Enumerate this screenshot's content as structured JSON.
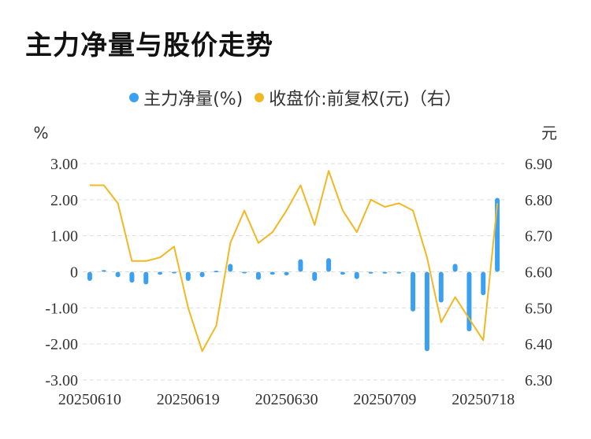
{
  "title": "主力净量与股价走势",
  "colors": {
    "bar": "#3ba0ef",
    "line": "#f2b824",
    "grid": "#dddddd"
  },
  "chart_data": {
    "type": "bar+line",
    "title": "主力净量与股价走势",
    "left_unit": "%",
    "right_unit": "元",
    "legend": [
      {
        "label": "主力净量(%)",
        "color": "#3ba0ef",
        "icon": "dot"
      },
      {
        "label": "收盘价:前复权(元)（右）",
        "color": "#f2b824",
        "icon": "dot"
      }
    ],
    "legend_position": "top-center",
    "grid": true,
    "y_left": {
      "ticks": [
        "3.00",
        "2.00",
        "1.00",
        "0",
        "-1.00",
        "-2.00",
        "-3.00"
      ],
      "range": [
        -3,
        3
      ]
    },
    "y_right": {
      "ticks": [
        "6.90",
        "6.80",
        "6.70",
        "6.60",
        "6.50",
        "6.40",
        "6.30"
      ],
      "range": [
        6.3,
        6.9
      ]
    },
    "x_tick_labels": [
      "20250610",
      "20250619",
      "20250630",
      "20250709",
      "20250718"
    ],
    "x_tick_indices": [
      0,
      7,
      14,
      21,
      28
    ],
    "series": [
      {
        "name": "主力净量(%)",
        "axis": "left",
        "type": "bar",
        "values": [
          -0.25,
          0.05,
          -0.15,
          -0.3,
          -0.35,
          -0.08,
          -0.03,
          -0.25,
          -0.15,
          0.03,
          0.22,
          -0.02,
          -0.22,
          -0.08,
          -0.1,
          0.35,
          -0.25,
          0.38,
          -0.08,
          -0.2,
          -0.05,
          -0.05,
          -0.05,
          -1.1,
          -2.2,
          -0.85,
          0.22,
          -1.65,
          -0.65,
          2.05
        ]
      },
      {
        "name": "收盘价:前复权(元)（右）",
        "axis": "right",
        "type": "line",
        "values": [
          6.84,
          6.84,
          6.79,
          6.63,
          6.63,
          6.64,
          6.67,
          6.5,
          6.38,
          6.45,
          6.68,
          6.77,
          6.68,
          6.71,
          6.77,
          6.84,
          6.73,
          6.88,
          6.77,
          6.71,
          6.8,
          6.78,
          6.79,
          6.77,
          6.64,
          6.46,
          6.53,
          6.47,
          6.41,
          6.79
        ]
      }
    ]
  }
}
